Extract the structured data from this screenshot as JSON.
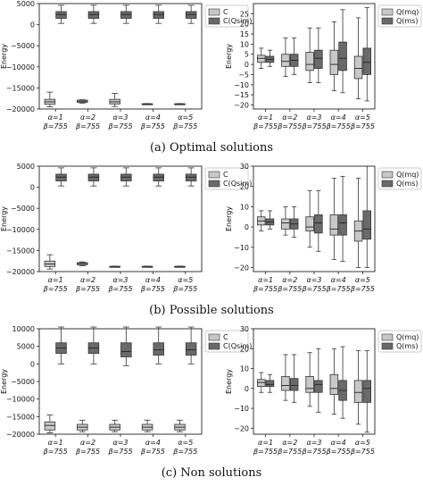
{
  "chart_data": [
    {
      "type": "box",
      "panel": "a-left",
      "ylabel": "Energy",
      "ylim": [
        -20000,
        5000
      ],
      "yticks": [
        5000,
        0,
        -5000,
        -10000,
        -15000,
        -20000
      ],
      "categories": [
        "α=1\nβ=755",
        "α=2\nβ=755",
        "α=3\nβ=755",
        "α=4\nβ=755",
        "α=5\nβ=755"
      ],
      "legend": [
        "C",
        "C(Qsim)"
      ],
      "legend_position": "top-right",
      "series": [
        {
          "name": "C",
          "color": "#c8c8c8",
          "boxes": [
            {
              "min": -19500,
              "q1": -18900,
              "median": -18300,
              "q3": -17700,
              "max": -16000
            },
            {
              "min": -18600,
              "q1": -18400,
              "median": -18150,
              "q3": -17900,
              "max": -17800
            },
            {
              "min": -19400,
              "q1": -18800,
              "median": -18300,
              "q3": -17700,
              "max": -16300
            },
            {
              "min": -18900,
              "q1": -18850,
              "median": -18800,
              "q3": -18750,
              "max": -18700
            },
            {
              "min": -18900,
              "q1": -18850,
              "median": -18800,
              "q3": -18750,
              "max": -18700
            }
          ]
        },
        {
          "name": "C(Qsim)",
          "color": "#6a6a6a",
          "boxes": [
            {
              "min": 300,
              "q1": 1500,
              "median": 2400,
              "q3": 3100,
              "max": 4600
            },
            {
              "min": 300,
              "q1": 1500,
              "median": 2400,
              "q3": 3100,
              "max": 4600
            },
            {
              "min": 300,
              "q1": 1500,
              "median": 2400,
              "q3": 3100,
              "max": 4600
            },
            {
              "min": 300,
              "q1": 1500,
              "median": 2400,
              "q3": 3100,
              "max": 4600
            },
            {
              "min": 300,
              "q1": 1500,
              "median": 2400,
              "q3": 3100,
              "max": 4600
            }
          ]
        }
      ]
    },
    {
      "type": "box",
      "panel": "a-right",
      "ylabel": "Energy",
      "ylim": [
        -22,
        30
      ],
      "yticks": [
        25,
        20,
        15,
        10,
        5,
        0,
        -5,
        -10,
        -15,
        -20
      ],
      "categories": [
        "α=1\nβ=755",
        "α=2\nβ=755",
        "α=3\nβ=755",
        "α=4\nβ=755",
        "α=5\nβ=755"
      ],
      "legend": [
        "Q(mq)",
        "Q(ms)"
      ],
      "legend_position": "top-right",
      "series": [
        {
          "name": "Q(mq)",
          "color": "#c8c8c8",
          "boxes": [
            {
              "min": -2,
              "q1": 1,
              "median": 3,
              "q3": 4.5,
              "max": 8
            },
            {
              "min": -6,
              "q1": -1,
              "median": 1.5,
              "q3": 5,
              "max": 13
            },
            {
              "min": -9,
              "q1": -3,
              "median": 0,
              "q3": 6,
              "max": 18
            },
            {
              "min": -13,
              "q1": -5,
              "median": 0,
              "q3": 7,
              "max": 21
            },
            {
              "min": -17,
              "q1": -7,
              "median": -2,
              "q3": 4,
              "max": 23
            }
          ]
        },
        {
          "name": "Q(ms)",
          "color": "#6a6a6a",
          "boxes": [
            {
              "min": -1,
              "q1": 1,
              "median": 2.5,
              "q3": 4,
              "max": 7
            },
            {
              "min": -5,
              "q1": -1,
              "median": 2,
              "q3": 5,
              "max": 13
            },
            {
              "min": -9,
              "q1": -2,
              "median": 3,
              "q3": 7,
              "max": 18
            },
            {
              "min": -14,
              "q1": -3,
              "median": 3,
              "q3": 11,
              "max": 27
            },
            {
              "min": -18,
              "q1": -5,
              "median": 1,
              "q3": 8,
              "max": 28
            }
          ]
        }
      ]
    },
    {
      "type": "box",
      "panel": "b-left",
      "ylabel": "Energy",
      "ylim": [
        -20000,
        5000
      ],
      "yticks": [
        5000,
        0,
        -5000,
        -10000,
        -15000,
        -20000
      ],
      "categories": [
        "α=1\nβ=755",
        "α=2\nβ=755",
        "α=3\nβ=755",
        "α=4\nβ=755",
        "α=5\nβ=755"
      ],
      "legend": [
        "C",
        "C(Qsim)"
      ],
      "legend_position": "top-right",
      "series": [
        {
          "name": "C",
          "color": "#c8c8c8",
          "boxes": [
            {
              "min": -19400,
              "q1": -18800,
              "median": -18200,
              "q3": -17500,
              "max": -16000
            },
            {
              "min": -18600,
              "q1": -18400,
              "median": -18100,
              "q3": -17900,
              "max": -17700
            },
            {
              "min": -18900,
              "q1": -18850,
              "median": -18800,
              "q3": -18750,
              "max": -18700
            },
            {
              "min": -18900,
              "q1": -18850,
              "median": -18800,
              "q3": -18750,
              "max": -18700
            },
            {
              "min": -18900,
              "q1": -18850,
              "median": -18800,
              "q3": -18750,
              "max": -18700
            }
          ]
        },
        {
          "name": "C(Qsim)",
          "color": "#6a6a6a",
          "boxes": [
            {
              "min": 300,
              "q1": 1500,
              "median": 2400,
              "q3": 3100,
              "max": 4600
            },
            {
              "min": 300,
              "q1": 1500,
              "median": 2400,
              "q3": 3100,
              "max": 4600
            },
            {
              "min": 300,
              "q1": 1500,
              "median": 2400,
              "q3": 3100,
              "max": 4600
            },
            {
              "min": 300,
              "q1": 1500,
              "median": 2400,
              "q3": 3100,
              "max": 4600
            },
            {
              "min": 300,
              "q1": 1500,
              "median": 2400,
              "q3": 3100,
              "max": 4600
            }
          ]
        }
      ]
    },
    {
      "type": "box",
      "panel": "b-right",
      "ylabel": "Energy",
      "ylim": [
        -22,
        30
      ],
      "yticks": [
        30,
        20,
        10,
        0,
        -10,
        -20
      ],
      "categories": [
        "α=1\nβ=755",
        "α=2\nβ=755",
        "α=3\nβ=755",
        "α=4\nβ=755",
        "α=5\nβ=755"
      ],
      "legend": [
        "Q(mq)",
        "Q(ms)"
      ],
      "legend_position": "top-right",
      "series": [
        {
          "name": "Q(mq)",
          "color": "#c8c8c8",
          "boxes": [
            {
              "min": -2,
              "q1": 1,
              "median": 3,
              "q3": 5,
              "max": 8
            },
            {
              "min": -4,
              "q1": -1,
              "median": 2,
              "q3": 4,
              "max": 10
            },
            {
              "min": -10,
              "q1": -2,
              "median": 0,
              "q3": 5,
              "max": 18
            },
            {
              "min": -16,
              "q1": -4,
              "median": -1,
              "q3": 6,
              "max": 24
            },
            {
              "min": -20,
              "q1": -7,
              "median": -2,
              "q3": 3,
              "max": 24
            }
          ]
        },
        {
          "name": "Q(ms)",
          "color": "#6a6a6a",
          "boxes": [
            {
              "min": -1,
              "q1": 1,
              "median": 2.5,
              "q3": 4,
              "max": 8
            },
            {
              "min": -5,
              "q1": -1,
              "median": 1.5,
              "q3": 4,
              "max": 10
            },
            {
              "min": -12,
              "q1": -3,
              "median": 2,
              "q3": 6,
              "max": 18
            },
            {
              "min": -17,
              "q1": -4,
              "median": 2,
              "q3": 6,
              "max": 25
            },
            {
              "min": -20,
              "q1": -6,
              "median": -1,
              "q3": 8,
              "max": 30
            }
          ]
        }
      ]
    },
    {
      "type": "box",
      "panel": "c-left",
      "ylabel": "Energy",
      "ylim": [
        -20000,
        10000
      ],
      "yticks": [
        10000,
        5000,
        0,
        -5000,
        -10000,
        -15000,
        -20000
      ],
      "categories": [
        "α=1\nβ=755",
        "α=2\nβ=755",
        "α=3\nβ=755",
        "α=4\nβ=755",
        "α=5\nβ=755"
      ],
      "legend": [
        "C",
        "C(Qsim)"
      ],
      "legend_position": "top-right",
      "series": [
        {
          "name": "C",
          "color": "#c8c8c8",
          "boxes": [
            {
              "min": -19600,
              "q1": -18800,
              "median": -17500,
              "q3": -16500,
              "max": -14500
            },
            {
              "min": -19300,
              "q1": -18800,
              "median": -18000,
              "q3": -17200,
              "max": -16000
            },
            {
              "min": -19300,
              "q1": -18800,
              "median": -18000,
              "q3": -17200,
              "max": -16000
            },
            {
              "min": -19300,
              "q1": -18800,
              "median": -18000,
              "q3": -17200,
              "max": -16000
            },
            {
              "min": -19300,
              "q1": -18800,
              "median": -18000,
              "q3": -17200,
              "max": -16000
            }
          ]
        },
        {
          "name": "C(Qsim)",
          "color": "#6a6a6a",
          "boxes": [
            {
              "min": 0,
              "q1": 3000,
              "median": 4500,
              "q3": 6000,
              "max": 10500
            },
            {
              "min": 0,
              "q1": 3000,
              "median": 4500,
              "q3": 6000,
              "max": 10500
            },
            {
              "min": -500,
              "q1": 2000,
              "median": 3500,
              "q3": 6000,
              "max": 10500
            },
            {
              "min": 0,
              "q1": 2500,
              "median": 4000,
              "q3": 6000,
              "max": 10500
            },
            {
              "min": 0,
              "q1": 2500,
              "median": 4000,
              "q3": 6000,
              "max": 10500
            }
          ]
        }
      ]
    },
    {
      "type": "box",
      "panel": "c-right",
      "ylabel": "Energy",
      "ylim": [
        -23,
        30
      ],
      "yticks": [
        30,
        20,
        10,
        0,
        -10,
        -20
      ],
      "categories": [
        "α=1\nβ=755",
        "α=2\nβ=755",
        "α=3\nβ=755",
        "α=4\nβ=755",
        "α=5\nβ=755"
      ],
      "legend": [
        "Q(mq)",
        "Q(ms)"
      ],
      "legend_position": "top-right",
      "series": [
        {
          "name": "Q(mq)",
          "color": "#c8c8c8",
          "boxes": [
            {
              "min": -2,
              "q1": 1,
              "median": 3,
              "q3": 4.5,
              "max": 8
            },
            {
              "min": -6,
              "q1": -1,
              "median": 1.5,
              "q3": 6,
              "max": 17
            },
            {
              "min": -9,
              "q1": -2,
              "median": 0,
              "q3": 6,
              "max": 18
            },
            {
              "min": -13,
              "q1": -3,
              "median": 0,
              "q3": 7,
              "max": 20
            },
            {
              "min": -18,
              "q1": -7,
              "median": -2,
              "q3": 4,
              "max": 19
            }
          ]
        },
        {
          "name": "Q(ms)",
          "color": "#6a6a6a",
          "boxes": [
            {
              "min": -2,
              "q1": 1,
              "median": 2,
              "q3": 4,
              "max": 7
            },
            {
              "min": -7,
              "q1": -1,
              "median": 1.5,
              "q3": 5,
              "max": 17
            },
            {
              "min": -12,
              "q1": -2,
              "median": 2,
              "q3": 4,
              "max": 20
            },
            {
              "min": -15,
              "q1": -6,
              "median": -1,
              "q3": 4,
              "max": 21
            },
            {
              "min": -22,
              "q1": -7,
              "median": 0,
              "q3": 4,
              "max": 19
            }
          ]
        }
      ]
    }
  ],
  "captions": {
    "a": "(a) Optimal solutions",
    "b": "(b) Possible solutions",
    "c": "(c) Non solutions"
  }
}
